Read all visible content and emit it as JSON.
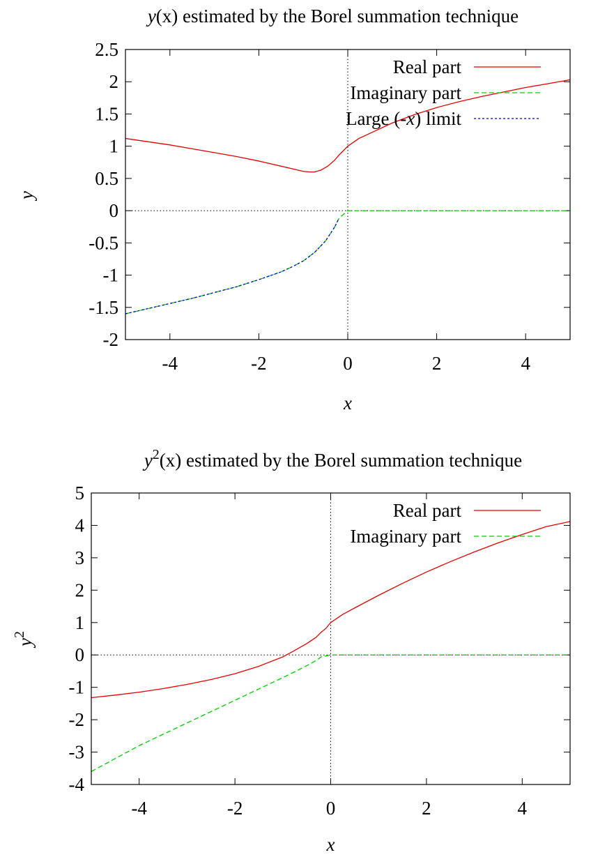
{
  "chart_data": [
    {
      "type": "line",
      "title": {
        "pre": "",
        "sup": "",
        "post": "(x) estimated by the Borel summation technique",
        "var": "y"
      },
      "xlabel": "x",
      "ylabel": {
        "main": "y",
        "sup": ""
      },
      "xlim": [
        -5,
        5
      ],
      "ylim": [
        -2,
        2.5
      ],
      "xticks": [
        -4,
        -2,
        0,
        2,
        4
      ],
      "yticks": [
        2.5,
        2,
        1.5,
        1,
        0.5,
        0,
        -0.5,
        -1,
        -1.5,
        -2
      ],
      "ytick_labels": [
        "2.5",
        "2",
        "1.5",
        "1",
        "0.5",
        "0",
        "-0.5",
        "-1",
        "-1.5",
        "-2"
      ],
      "xtick_labels": [
        "-4",
        "-2",
        "0",
        "2",
        "4"
      ],
      "grid": false,
      "legend_position": "top-right",
      "series": [
        {
          "name": "Real part",
          "color": "#e00000",
          "dash": "solid",
          "x": [
            -5,
            -4.5,
            -4,
            -3.5,
            -3,
            -2.5,
            -2,
            -1.5,
            -1.25,
            -1,
            -0.85,
            -0.75,
            -0.6,
            -0.45,
            -0.3,
            -0.2,
            -0.1,
            0,
            0.25,
            0.5,
            1,
            1.5,
            2,
            2.5,
            3,
            3.5,
            4,
            4.5,
            5
          ],
          "y": [
            1.12,
            1.07,
            1.02,
            0.96,
            0.9,
            0.84,
            0.77,
            0.69,
            0.65,
            0.61,
            0.6,
            0.6,
            0.63,
            0.69,
            0.78,
            0.86,
            0.93,
            1.0,
            1.12,
            1.2,
            1.36,
            1.49,
            1.6,
            1.69,
            1.77,
            1.84,
            1.91,
            1.97,
            2.03
          ]
        },
        {
          "name": "Imaginary part",
          "color": "#00cc00",
          "dash": "long-dash",
          "x": [
            -5,
            -4.5,
            -4,
            -3.5,
            -3,
            -2.5,
            -2,
            -1.5,
            -1.25,
            -1,
            -0.75,
            -0.5,
            -0.3,
            -0.2,
            0,
            1,
            2,
            3,
            4,
            5
          ],
          "y": [
            -1.6,
            -1.52,
            -1.44,
            -1.36,
            -1.27,
            -1.18,
            -1.07,
            -0.95,
            -0.87,
            -0.78,
            -0.65,
            -0.47,
            -0.26,
            -0.12,
            0,
            0,
            0,
            0,
            0,
            0
          ]
        },
        {
          "name": "Large (-x) limit",
          "color": "#0000cc",
          "dash": "short-dash",
          "x": [
            -5,
            -4.5,
            -4,
            -3.5,
            -3,
            -2.5,
            -2,
            -1.5,
            -1.25,
            -1,
            -0.75,
            -0.5,
            -0.3,
            -0.2
          ],
          "y": [
            -1.6,
            -1.52,
            -1.44,
            -1.36,
            -1.27,
            -1.18,
            -1.07,
            -0.95,
            -0.87,
            -0.78,
            -0.65,
            -0.47,
            -0.26,
            -0.12
          ]
        }
      ]
    },
    {
      "type": "line",
      "title": {
        "pre": "",
        "sup": "2",
        "post": "(x) estimated by the Borel summation technique",
        "var": "y"
      },
      "xlabel": "x",
      "ylabel": {
        "main": "y",
        "sup": "2"
      },
      "xlim": [
        -5,
        5
      ],
      "ylim": [
        -4,
        5
      ],
      "xticks": [
        -4,
        -2,
        0,
        2,
        4
      ],
      "yticks": [
        5,
        4,
        3,
        2,
        1,
        0,
        -1,
        -2,
        -3,
        -4
      ],
      "ytick_labels": [
        "5",
        "4",
        "3",
        "2",
        "1",
        "0",
        "-1",
        "-2",
        "-3",
        "-4"
      ],
      "xtick_labels": [
        "-4",
        "-2",
        "0",
        "2",
        "4"
      ],
      "grid": false,
      "legend_position": "top-right",
      "series": [
        {
          "name": "Real part",
          "color": "#e00000",
          "dash": "solid",
          "x": [
            -5,
            -4.5,
            -4,
            -3.5,
            -3,
            -2.5,
            -2,
            -1.5,
            -1,
            -0.75,
            -0.5,
            -0.3,
            -0.2,
            -0.1,
            0,
            0.25,
            0.5,
            1,
            1.5,
            2,
            2.5,
            3,
            3.5,
            4,
            4.5,
            5
          ],
          "y": [
            -1.32,
            -1.24,
            -1.15,
            -1.04,
            -0.91,
            -0.76,
            -0.58,
            -0.35,
            -0.06,
            0.14,
            0.35,
            0.55,
            0.7,
            0.82,
            1.0,
            1.25,
            1.45,
            1.84,
            2.21,
            2.56,
            2.88,
            3.18,
            3.46,
            3.72,
            3.96,
            4.12
          ]
        },
        {
          "name": "Imaginary part",
          "color": "#00cc00",
          "dash": "long-dash",
          "x": [
            -5,
            -4.5,
            -4,
            -3.5,
            -3,
            -2.5,
            -2,
            -1.5,
            -1,
            -0.75,
            -0.5,
            -0.3,
            -0.2,
            0,
            1,
            2,
            3,
            4,
            5
          ],
          "y": [
            -3.6,
            -3.2,
            -2.8,
            -2.45,
            -2.1,
            -1.75,
            -1.4,
            -1.05,
            -0.7,
            -0.52,
            -0.33,
            -0.17,
            -0.06,
            0,
            0,
            0,
            0,
            0,
            0
          ]
        }
      ]
    }
  ]
}
